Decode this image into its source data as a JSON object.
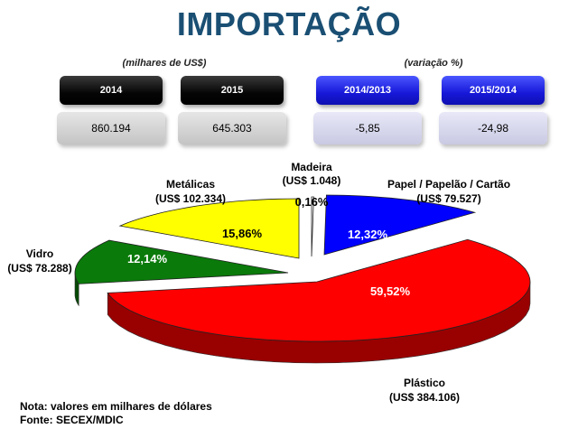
{
  "title": "IMPORTAÇÃO",
  "table": {
    "left_label": "(milhares de US$)",
    "right_label": "(variação %)",
    "headers": [
      "2014",
      "2015",
      "2014/2013",
      "2015/2014"
    ],
    "values": [
      "860.194",
      "645.303",
      "-5,85",
      "-24,98"
    ]
  },
  "colors": {
    "title": "#1a4f73",
    "header_black": "#000000",
    "header_blue": "#1718d8",
    "plastico": "#ff0000",
    "vidro": "#0a7a0a",
    "metalicas": "#ffff00",
    "madeira": "#ffffff",
    "papel": "#0000ff"
  },
  "chart_data": {
    "type": "pie",
    "slices": [
      {
        "name": "Plástico",
        "value_label": "(US$ 384.106)",
        "percent_label": "59,52%",
        "percent": 59.52,
        "color": "#ff0000"
      },
      {
        "name": "Vidro",
        "value_label": "(US$ 78.288)",
        "percent_label": "12,14%",
        "percent": 12.14,
        "color": "#0a7a0a"
      },
      {
        "name": "Metálicas",
        "value_label": "(US$ 102.334)",
        "percent_label": "15,86%",
        "percent": 15.86,
        "color": "#ffff00"
      },
      {
        "name": "Madeira",
        "value_label": "(US$ 1.048)",
        "percent_label": "0,16%",
        "percent": 0.16,
        "color": "#ffffff"
      },
      {
        "name": "Papel / Papelão / Cartão",
        "value_label": "(US$ 79.527)",
        "percent_label": "12,32%",
        "percent": 12.32,
        "color": "#0000ff"
      }
    ]
  },
  "notes": {
    "nota": "Nota: valores em milhares de dólares",
    "fonte": "Fonte: SECEX/MDIC"
  }
}
